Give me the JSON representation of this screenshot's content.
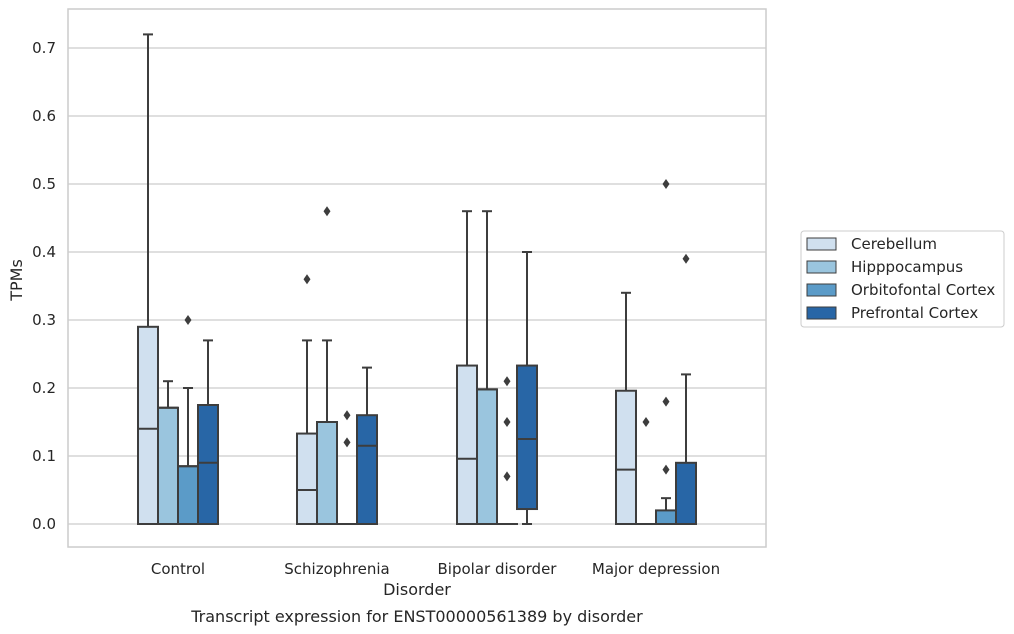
{
  "chart_data": {
    "type": "box",
    "caption": "Transcript expression for ENST00000561389 by disorder",
    "xlabel": "Disorder",
    "ylabel": "TPMs",
    "ylim": [
      -0.035,
      0.76
    ],
    "yticks": [
      0.0,
      0.1,
      0.2,
      0.3,
      0.4,
      0.5,
      0.6,
      0.7
    ],
    "ytick_labels": [
      "0.0",
      "0.1",
      "0.2",
      "0.3",
      "0.4",
      "0.5",
      "0.6",
      "0.7"
    ],
    "grid": "horizontal",
    "legend_position": "right",
    "categories": [
      "Control",
      "Schizophrenia",
      "Bipolar disorder",
      "Major depression"
    ],
    "series": [
      {
        "name": "Cerebellum",
        "color": "#d0e0ef",
        "boxes": [
          {
            "q1": 0.0,
            "median": 0.14,
            "q3": 0.29,
            "whisker_low": 0.0,
            "whisker_high": 0.72,
            "outliers": []
          },
          {
            "q1": 0.0,
            "median": 0.05,
            "q3": 0.133,
            "whisker_low": 0.0,
            "whisker_high": 0.27,
            "outliers": [
              0.36
            ]
          },
          {
            "q1": 0.0,
            "median": 0.096,
            "q3": 0.233,
            "whisker_low": 0.0,
            "whisker_high": 0.46,
            "outliers": []
          },
          {
            "q1": 0.0,
            "median": 0.08,
            "q3": 0.196,
            "whisker_low": 0.0,
            "whisker_high": 0.34,
            "outliers": []
          }
        ]
      },
      {
        "name": "Hipppocampus",
        "color": "#9ac5de",
        "boxes": [
          {
            "q1": 0.0,
            "median": 0.171,
            "q3": 0.171,
            "whisker_low": 0.0,
            "whisker_high": 0.21,
            "outliers": []
          },
          {
            "q1": 0.0,
            "median": 0.15,
            "q3": 0.15,
            "whisker_low": 0.0,
            "whisker_high": 0.27,
            "outliers": [
              0.46
            ]
          },
          {
            "q1": 0.0,
            "median": 0.198,
            "q3": 0.198,
            "whisker_low": 0.0,
            "whisker_high": 0.46,
            "outliers": []
          },
          {
            "q1": 0.0,
            "median": 0.0,
            "q3": 0.0,
            "whisker_low": 0.0,
            "whisker_high": 0.0,
            "outliers": [
              0.15
            ]
          }
        ]
      },
      {
        "name": "Orbitofontal Cortex",
        "color": "#5b9bc8",
        "boxes": [
          {
            "q1": 0.0,
            "median": 0.085,
            "q3": 0.085,
            "whisker_low": 0.0,
            "whisker_high": 0.2,
            "outliers": [
              0.3
            ]
          },
          {
            "q1": 0.0,
            "median": 0.0,
            "q3": 0.0,
            "whisker_low": 0.0,
            "whisker_high": 0.0,
            "outliers": [
              0.12,
              0.16
            ]
          },
          {
            "q1": 0.0,
            "median": 0.0,
            "q3": 0.0,
            "whisker_low": 0.0,
            "whisker_high": 0.0,
            "outliers": [
              0.07,
              0.15,
              0.21
            ]
          },
          {
            "q1": 0.0,
            "median": 0.0,
            "q3": 0.02,
            "whisker_low": 0.0,
            "whisker_high": 0.038,
            "outliers": [
              0.08,
              0.18,
              0.5
            ]
          }
        ]
      },
      {
        "name": "Prefrontal Cortex",
        "color": "#2866a6",
        "boxes": [
          {
            "q1": 0.0,
            "median": 0.09,
            "q3": 0.175,
            "whisker_low": 0.0,
            "whisker_high": 0.27,
            "outliers": []
          },
          {
            "q1": 0.0,
            "median": 0.115,
            "q3": 0.16,
            "whisker_low": 0.0,
            "whisker_high": 0.23,
            "outliers": []
          },
          {
            "q1": 0.022,
            "median": 0.125,
            "q3": 0.233,
            "whisker_low": 0.0,
            "whisker_high": 0.4,
            "outliers": []
          },
          {
            "q1": 0.0,
            "median": 0.0,
            "q3": 0.09,
            "whisker_low": 0.0,
            "whisker_high": 0.22,
            "outliers": [
              0.39
            ]
          }
        ]
      }
    ]
  }
}
